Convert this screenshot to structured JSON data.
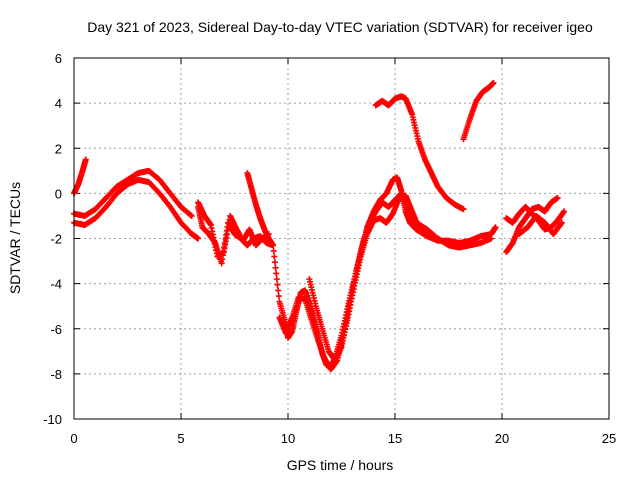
{
  "chart_data": {
    "type": "scatter",
    "title": "Day 321 of 2023, Sidereal Day-to-day VTEC variation (SDTVAR) for receiver igeo",
    "xlabel": "GPS time / hours",
    "ylabel": "SDTVAR / TECUs",
    "xlim": [
      0,
      25
    ],
    "ylim": [
      -10,
      6
    ],
    "xticks": [
      "0",
      "5",
      "10",
      "15",
      "20",
      "25"
    ],
    "yticks": [
      "-10",
      "-8",
      "-6",
      "-4",
      "-2",
      "0",
      "2",
      "4",
      "6"
    ],
    "grid": true,
    "marker": "+",
    "color": "#ff0000",
    "series": [
      {
        "x": [
          0.0,
          0.2,
          0.4,
          0.55
        ],
        "y": [
          0.0,
          0.4,
          1.0,
          1.5
        ]
      },
      {
        "x": [
          0.0,
          0.5,
          1.0,
          1.5,
          2.0,
          2.5,
          3.0,
          3.5,
          4.0,
          4.5,
          5.0,
          5.5,
          5.8
        ],
        "y": [
          -1.3,
          -1.4,
          -1.1,
          -0.6,
          0.0,
          0.4,
          0.6,
          0.5,
          0.0,
          -0.6,
          -1.3,
          -1.8,
          -2.0
        ]
      },
      {
        "x": [
          0.0,
          0.5,
          1.0,
          1.5,
          2.0,
          2.5,
          3.0,
          3.5,
          4.0,
          4.5,
          5.0,
          5.5
        ],
        "y": [
          -0.9,
          -1.0,
          -0.7,
          -0.2,
          0.3,
          0.6,
          0.9,
          1.0,
          0.6,
          0.0,
          -0.6,
          -1.0
        ]
      },
      {
        "x": [
          5.8,
          6.0,
          6.3,
          6.6,
          6.9,
          7.2,
          7.5,
          7.8,
          8.1,
          8.4,
          8.7,
          9.0,
          9.3
        ],
        "y": [
          -0.6,
          -1.5,
          -1.8,
          -2.2,
          -3.1,
          -1.3,
          -1.8,
          -2.0,
          -2.3,
          -2.0,
          -1.9,
          -2.2,
          -2.3
        ]
      },
      {
        "x": [
          5.8,
          6.1,
          6.4,
          6.7,
          7.0,
          7.3,
          7.6,
          7.9,
          8.2,
          8.5,
          8.8,
          9.1
        ],
        "y": [
          -0.4,
          -1.0,
          -1.4,
          -2.8,
          -2.6,
          -1.0,
          -1.6,
          -2.1,
          -1.6,
          -2.3,
          -2.0,
          -1.8
        ]
      },
      {
        "x": [
          8.1,
          8.3,
          8.5,
          8.7,
          8.9,
          9.1,
          9.3
        ],
        "y": [
          0.9,
          0.2,
          -0.5,
          -1.1,
          -1.6,
          -2.0,
          -2.3
        ]
      },
      {
        "x": [
          9.3,
          9.6,
          9.9,
          10.0,
          10.2,
          10.4,
          10.6,
          10.8,
          11.0,
          11.2,
          11.4,
          11.6,
          11.8,
          12.0,
          12.2,
          12.5,
          12.8,
          13.1,
          13.4,
          13.7,
          14.0,
          14.3,
          14.6,
          14.9,
          15.1,
          15.3,
          15.5,
          15.7,
          16.0,
          16.5
        ],
        "y": [
          -2.3,
          -4.8,
          -5.8,
          -6.4,
          -6.1,
          -5.2,
          -4.4,
          -4.3,
          -4.9,
          -5.6,
          -6.3,
          -7.1,
          -7.6,
          -7.7,
          -7.3,
          -6.3,
          -5.0,
          -3.8,
          -2.6,
          -1.5,
          -0.8,
          -0.3,
          0.0,
          0.6,
          0.7,
          0.1,
          -0.8,
          -1.3,
          -1.6,
          -1.8
        ]
      },
      {
        "x": [
          9.6,
          9.9,
          10.2,
          10.5,
          10.8,
          11.1,
          11.4,
          11.7,
          12.0,
          12.3,
          12.6,
          12.9,
          13.2,
          13.5,
          13.8,
          14.1,
          14.4,
          14.7,
          15.0,
          15.3,
          15.6,
          15.9
        ],
        "y": [
          -5.5,
          -6.2,
          -5.5,
          -4.6,
          -4.7,
          -5.6,
          -6.5,
          -7.3,
          -7.8,
          -7.4,
          -6.3,
          -4.8,
          -3.4,
          -2.2,
          -1.3,
          -0.8,
          -0.4,
          -0.6,
          -0.3,
          0.0,
          -0.6,
          -1.3
        ]
      },
      {
        "x": [
          11.0,
          11.3,
          11.6,
          11.9,
          12.2,
          12.5,
          12.8,
          13.1,
          13.4,
          13.7,
          14.0,
          14.3,
          14.6,
          14.9,
          15.2,
          15.5,
          15.8,
          16.1
        ],
        "y": [
          -3.8,
          -5.0,
          -6.0,
          -7.0,
          -7.4,
          -6.8,
          -5.5,
          -4.1,
          -2.8,
          -1.8,
          -1.2,
          -1.1,
          -1.3,
          -0.9,
          -0.2,
          -0.1,
          -0.8,
          -1.5
        ]
      },
      {
        "x": [
          14.1,
          14.4,
          14.7,
          15.0,
          15.3,
          15.5,
          15.8,
          16.1,
          16.4,
          16.7,
          17.0,
          17.4,
          17.8,
          18.2
        ],
        "y": [
          3.9,
          4.1,
          3.9,
          4.2,
          4.3,
          4.2,
          3.5,
          2.3,
          1.5,
          0.9,
          0.3,
          -0.2,
          -0.5,
          -0.7
        ]
      },
      {
        "x": [
          18.2,
          18.5,
          18.8,
          19.1,
          19.4,
          19.6
        ],
        "y": [
          2.4,
          3.3,
          4.1,
          4.5,
          4.7,
          4.9
        ]
      },
      {
        "x": [
          16.0,
          16.5,
          17.0,
          17.5,
          18.0,
          18.5,
          19.0,
          19.5,
          19.7
        ],
        "y": [
          -1.6,
          -1.9,
          -2.1,
          -2.1,
          -2.2,
          -2.1,
          -1.9,
          -1.8,
          -1.5
        ]
      },
      {
        "x": [
          16.0,
          16.5,
          17.0,
          17.5,
          18.0,
          18.5,
          19.0,
          19.5
        ],
        "y": [
          -1.3,
          -1.6,
          -2.0,
          -2.3,
          -2.4,
          -2.3,
          -2.2,
          -2.0
        ]
      },
      {
        "x": [
          20.2,
          20.5,
          20.8,
          21.1,
          21.4,
          21.7,
          22.0,
          22.3,
          22.6
        ],
        "y": [
          -2.6,
          -2.2,
          -1.5,
          -1.1,
          -0.7,
          -0.6,
          -0.8,
          -0.4,
          -0.2
        ]
      },
      {
        "x": [
          20.2,
          20.5,
          20.8,
          21.1,
          21.4,
          21.7,
          22.0,
          22.3,
          22.6,
          22.9
        ],
        "y": [
          -1.1,
          -1.3,
          -0.9,
          -0.6,
          -0.9,
          -1.2,
          -1.6,
          -1.5,
          -1.2,
          -0.8
        ]
      },
      {
        "x": [
          20.8,
          21.2,
          21.6,
          22.0,
          22.4,
          22.8
        ],
        "y": [
          -1.8,
          -1.5,
          -1.0,
          -1.3,
          -1.8,
          -1.3
        ]
      }
    ]
  }
}
